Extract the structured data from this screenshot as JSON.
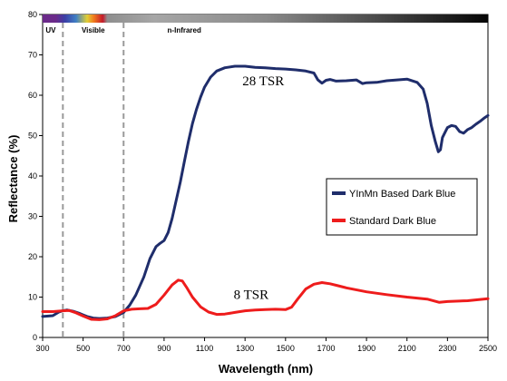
{
  "chart_data": {
    "type": "line",
    "xlabel": "Wavelength (nm)",
    "ylabel": "Reflectance (%)",
    "xlim": [
      300,
      2500
    ],
    "ylim": [
      0,
      80
    ],
    "xticks": [
      300,
      500,
      700,
      900,
      1100,
      1300,
      1500,
      1700,
      1900,
      2100,
      2300,
      2500
    ],
    "yticks": [
      0,
      10,
      20,
      30,
      40,
      50,
      60,
      70,
      80
    ],
    "grid": false,
    "legend_position": "right",
    "region_labels": [
      {
        "label": "UV",
        "x": 340
      },
      {
        "label": "Visible",
        "x": 550
      },
      {
        "label": "n-Infrared",
        "x": 1000
      }
    ],
    "region_boundaries": [
      400,
      700
    ],
    "annotations": [
      {
        "text": "28 TSR",
        "x": 1390,
        "y": 62.5
      },
      {
        "text": "8 TSR",
        "x": 1330,
        "y": 9.5
      }
    ],
    "series": [
      {
        "name": "YInMn Based Dark Blue",
        "color": "#1f2d6b",
        "x": [
          300,
          350,
          380,
          400,
          420,
          450,
          480,
          500,
          520,
          550,
          580,
          620,
          660,
          700,
          730,
          760,
          800,
          830,
          860,
          880,
          900,
          920,
          940,
          960,
          980,
          1000,
          1020,
          1040,
          1060,
          1080,
          1100,
          1130,
          1160,
          1200,
          1250,
          1300,
          1350,
          1400,
          1450,
          1500,
          1550,
          1600,
          1640,
          1660,
          1680,
          1700,
          1720,
          1750,
          1800,
          1850,
          1880,
          1900,
          1950,
          2000,
          2050,
          2100,
          2150,
          2180,
          2200,
          2220,
          2240,
          2255,
          2265,
          2275,
          2290,
          2300,
          2320,
          2340,
          2360,
          2380,
          2400,
          2420,
          2440,
          2460,
          2480,
          2500
        ],
        "y": [
          5.2,
          5.4,
          6.3,
          6.6,
          6.8,
          6.5,
          6.0,
          5.6,
          5.2,
          4.8,
          4.7,
          4.8,
          5.2,
          6.2,
          8.0,
          10.5,
          15.0,
          19.5,
          22.5,
          23.3,
          24.0,
          26.0,
          29.5,
          34.0,
          38.5,
          43.5,
          48.5,
          53.0,
          56.5,
          59.5,
          62.0,
          64.5,
          66.0,
          66.8,
          67.2,
          67.2,
          66.9,
          66.8,
          66.6,
          66.5,
          66.3,
          66.0,
          65.5,
          63.8,
          63.0,
          63.7,
          63.9,
          63.5,
          63.6,
          63.8,
          62.9,
          63.1,
          63.2,
          63.6,
          63.8,
          64.0,
          63.2,
          61.5,
          58.0,
          52.5,
          48.5,
          46.0,
          46.5,
          49.5,
          51.0,
          52.0,
          52.5,
          52.3,
          51.0,
          50.6,
          51.5,
          52.0,
          52.8,
          53.5,
          54.3,
          55.0
        ]
      },
      {
        "name": "Standard Dark Blue",
        "color": "#ee1c1c",
        "x": [
          300,
          350,
          400,
          430,
          460,
          500,
          540,
          580,
          620,
          660,
          700,
          740,
          780,
          820,
          860,
          900,
          940,
          970,
          990,
          1010,
          1040,
          1080,
          1120,
          1160,
          1200,
          1250,
          1300,
          1350,
          1400,
          1450,
          1500,
          1530,
          1560,
          1600,
          1640,
          1680,
          1720,
          1760,
          1800,
          1900,
          2000,
          2100,
          2200,
          2260,
          2300,
          2400,
          2500
        ],
        "y": [
          6.4,
          6.4,
          6.6,
          6.7,
          6.2,
          5.3,
          4.5,
          4.4,
          4.6,
          5.4,
          6.6,
          7.0,
          7.1,
          7.2,
          8.2,
          10.5,
          13.0,
          14.2,
          14.0,
          12.5,
          10.0,
          7.6,
          6.3,
          5.7,
          5.8,
          6.2,
          6.6,
          6.8,
          6.9,
          7.0,
          6.9,
          7.5,
          9.5,
          12.0,
          13.2,
          13.6,
          13.3,
          12.8,
          12.3,
          11.3,
          10.6,
          10.0,
          9.5,
          8.7,
          8.9,
          9.1,
          9.6
        ]
      }
    ]
  }
}
